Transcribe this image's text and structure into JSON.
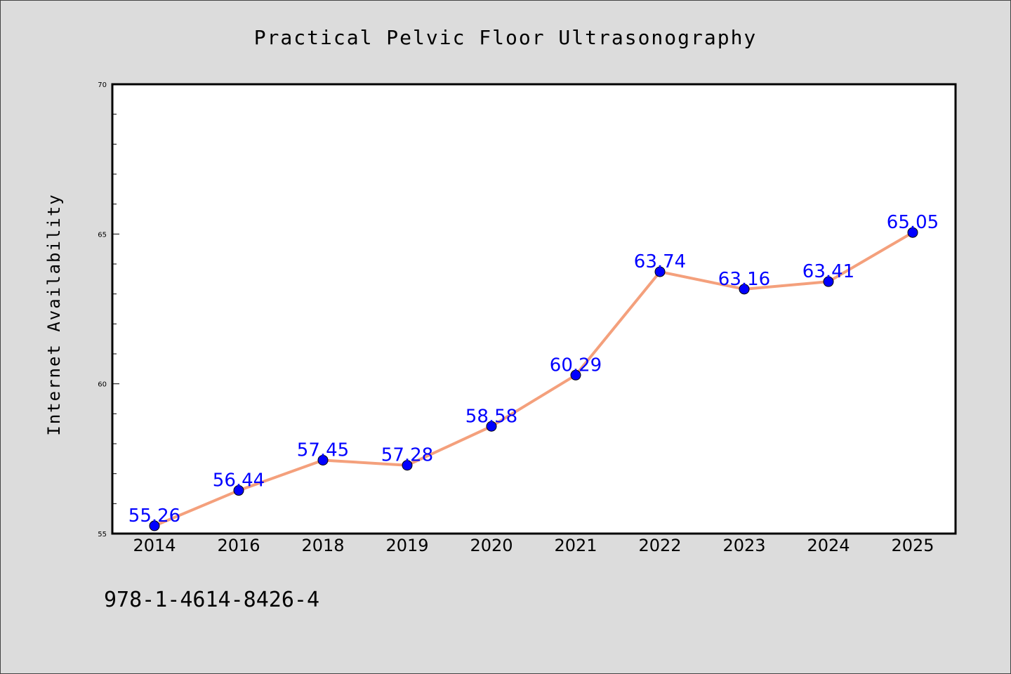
{
  "footnote": "978-1-4614-8426-4",
  "chart_data": {
    "type": "line",
    "title": "Practical Pelvic Floor Ultrasonography",
    "xlabel": "",
    "ylabel": "Internet Availability",
    "categories": [
      "2014",
      "2016",
      "2018",
      "2019",
      "2020",
      "2021",
      "2022",
      "2023",
      "2024",
      "2025"
    ],
    "values": [
      55.26,
      56.44,
      57.45,
      57.28,
      58.58,
      60.29,
      63.74,
      63.16,
      63.41,
      65.05
    ],
    "data_labels": [
      "55.26",
      "56.44",
      "57.45",
      "57.28",
      "58.58",
      "60.29",
      "63.74",
      "63.16",
      "63.41",
      "65.05"
    ],
    "ylim": [
      55,
      70
    ],
    "yticks": [
      55,
      60,
      65,
      70
    ],
    "grid": false,
    "legend": "none",
    "colors": {
      "line": "#f4a07c",
      "marker": "#0000ff",
      "data_label": "#0000ff"
    }
  }
}
